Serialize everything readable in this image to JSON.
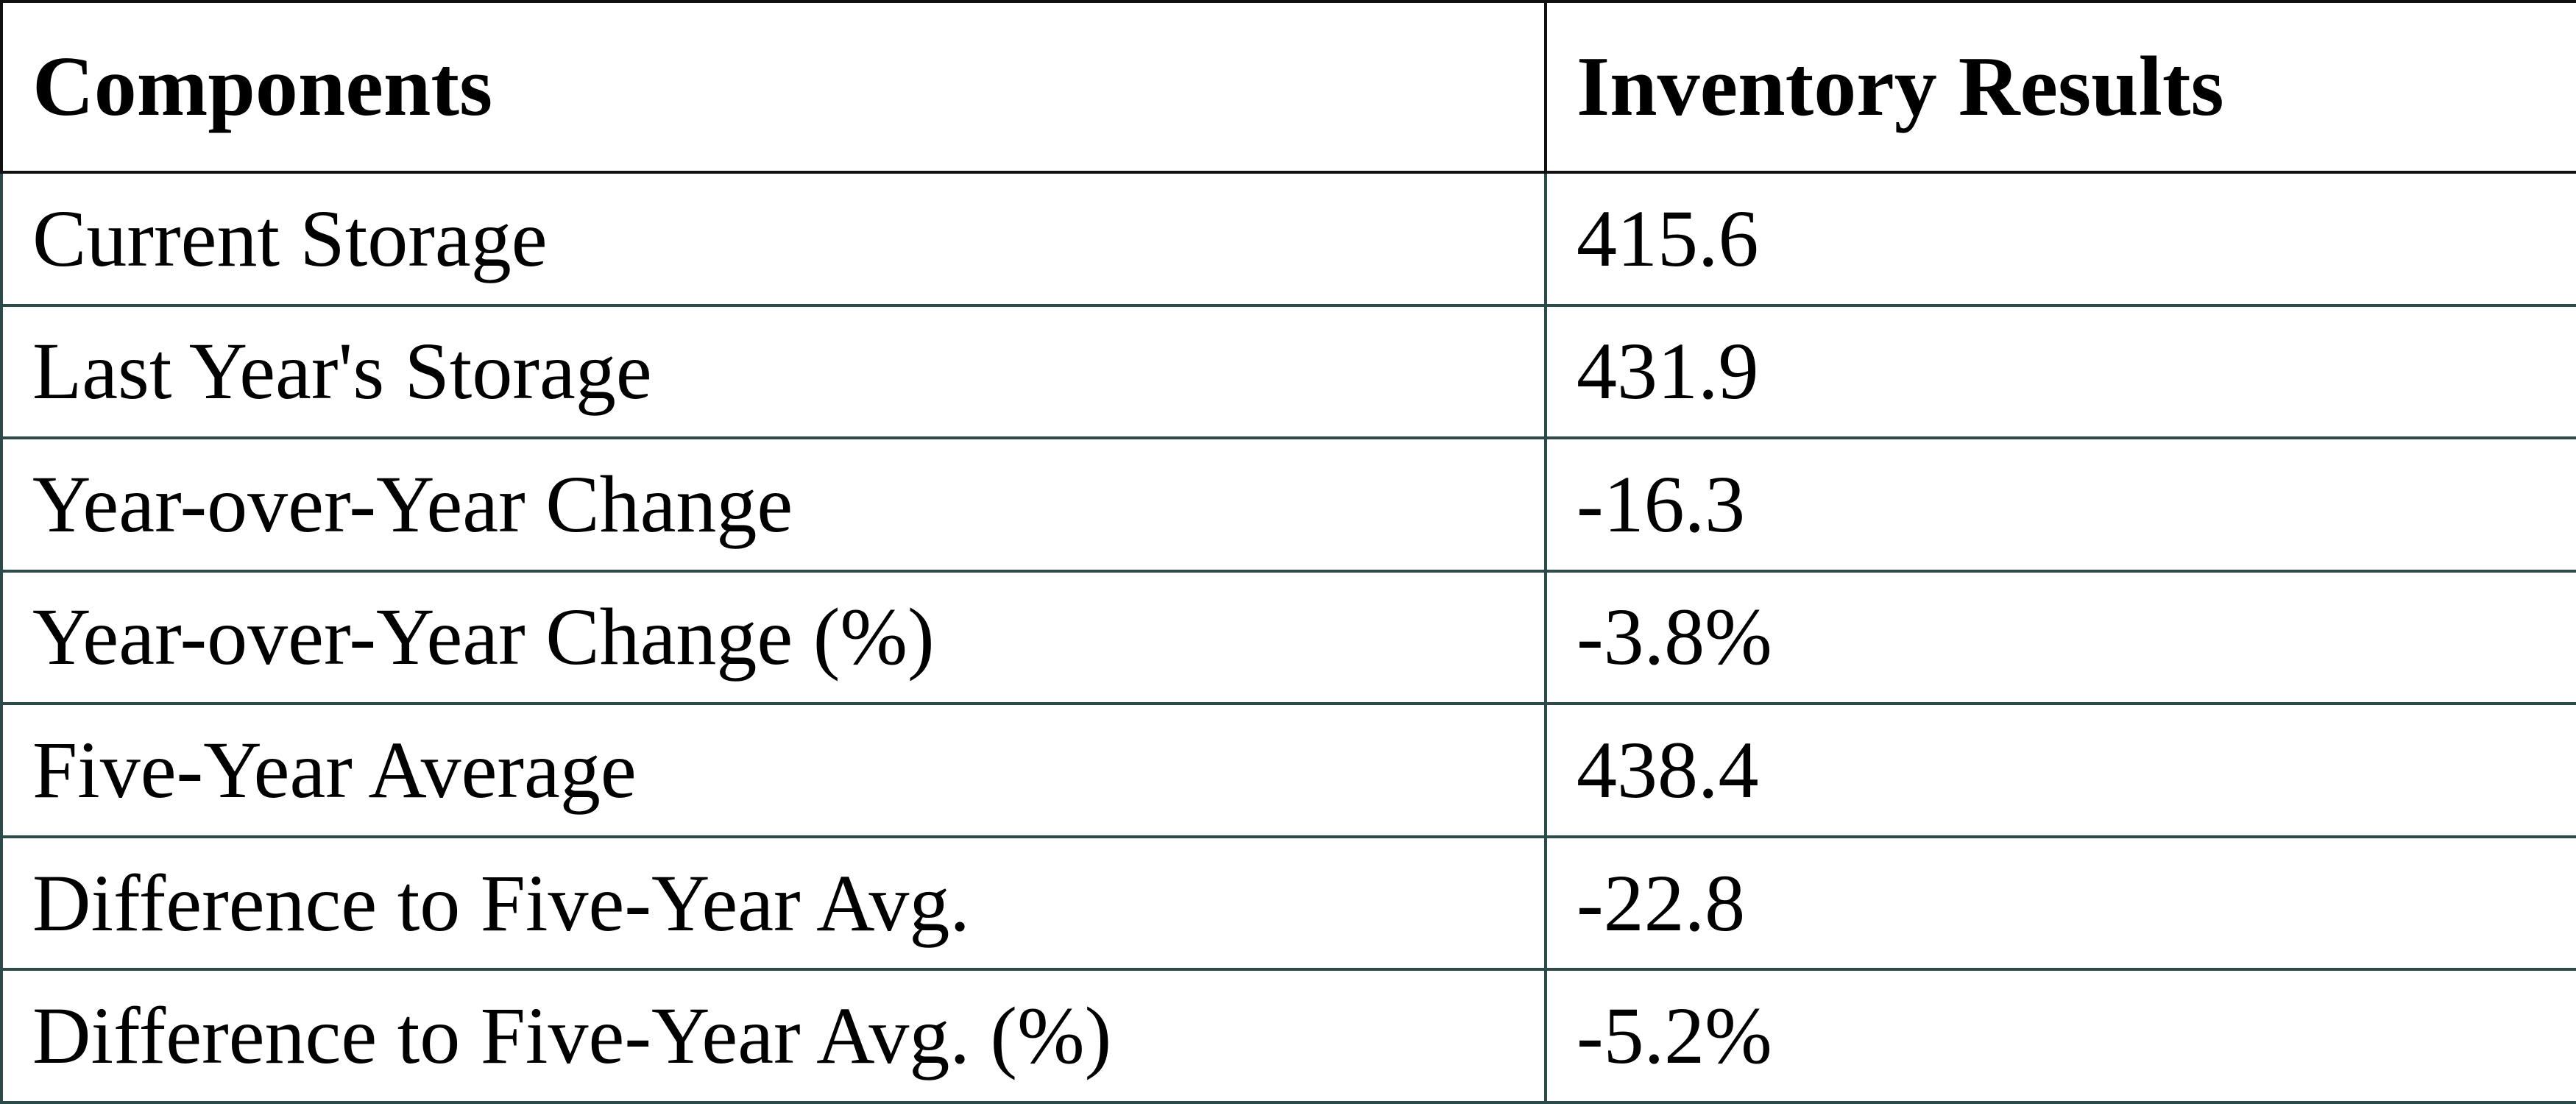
{
  "table": {
    "header": [
      "Components",
      "Inventory Results"
    ],
    "rows": [
      [
        "Current Storage",
        "415.6"
      ],
      [
        "Last Year's Storage",
        "431.9"
      ],
      [
        "Year-over-Year Change",
        "-16.3"
      ],
      [
        "Year-over-Year Change (%)",
        "-3.8%"
      ],
      [
        "Five-Year Average",
        "438.4"
      ],
      [
        "Difference to Five-Year Avg.",
        "-22.8"
      ],
      [
        "Difference to Five-Year Avg. (%)",
        "-5.2%"
      ]
    ]
  }
}
